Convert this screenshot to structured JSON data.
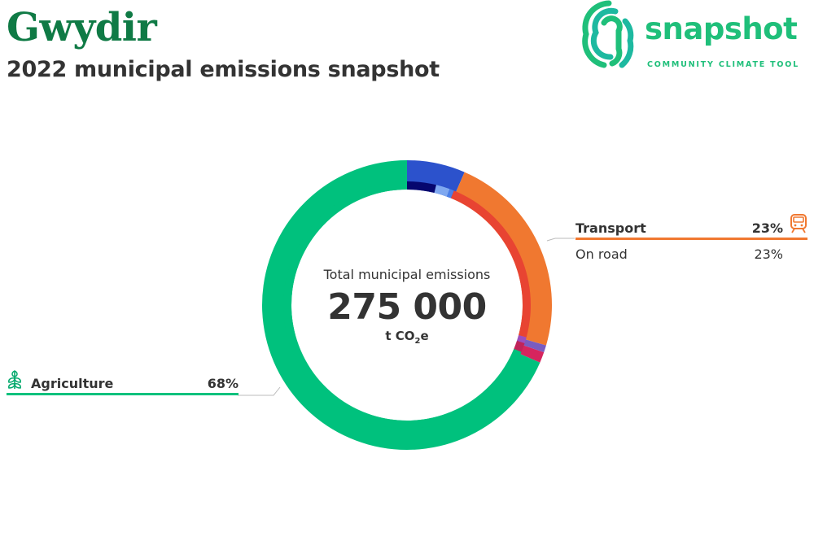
{
  "header": {
    "title": "Gwydir",
    "subtitle": "2022 municipal emissions snapshot"
  },
  "logo": {
    "word": "snapshot",
    "tagline": "COMMUNITY CLIMATE TOOL",
    "color": "#1fbf7a",
    "dark_color": "#1db9a0"
  },
  "center": {
    "caption": "Total municipal emissions",
    "total": "275 000",
    "unit_prefix": "t CO",
    "unit_sub": "2",
    "unit_suffix": "e"
  },
  "categories": [
    {
      "name": "Transport",
      "percent_label": "23%",
      "color": "#f07830",
      "icon": "train-icon",
      "subcategories": [
        {
          "name": "On road",
          "percent_label": "23%"
        }
      ]
    },
    {
      "name": "Agriculture",
      "percent_label": "68%",
      "color": "#00c17d",
      "icon": "sprout-icon",
      "subcategories": []
    }
  ],
  "chart_data": {
    "type": "pie",
    "title": "Total municipal emissions",
    "total": 275000,
    "unit": "t CO2e",
    "outer_ring": [
      {
        "name": "",
        "value": 6.5,
        "color": "#2c52cc"
      },
      {
        "name": "Transport",
        "value": 23,
        "color": "#f07830"
      },
      {
        "name": "",
        "value": 0.8,
        "color": "#7a5cc0"
      },
      {
        "name": "",
        "value": 1.2,
        "color": "#d6255e"
      },
      {
        "name": "Agriculture",
        "value": 68.5,
        "color": "#00c17d"
      }
    ],
    "inner_ring": [
      {
        "name": "",
        "value": 3.8,
        "color": "#06066e"
      },
      {
        "name": "",
        "value": 1.8,
        "color": "#7fa8f0"
      },
      {
        "name": "",
        "value": 0.6,
        "color": "#4a7fe8"
      },
      {
        "name": "On road",
        "value": 23,
        "color": "#e84432"
      },
      {
        "name": "",
        "value": 0.8,
        "color": "#9b4fc0"
      },
      {
        "name": "",
        "value": 1.2,
        "color": "#c0245a"
      },
      {
        "name": "",
        "value": 68.8,
        "color": "#00c17d"
      }
    ]
  }
}
